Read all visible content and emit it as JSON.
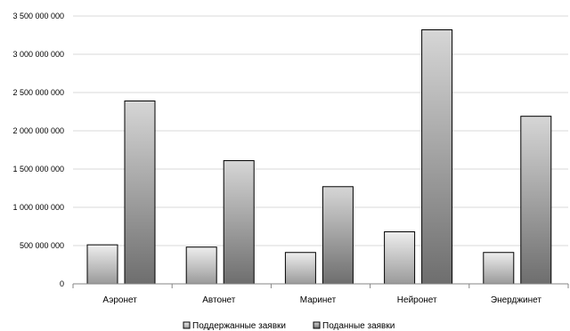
{
  "chart_data": {
    "type": "bar",
    "categories": [
      "Аэронет",
      "Автонет",
      "Маринет",
      "Нейронет",
      "Энерджинет"
    ],
    "series": [
      {
        "name": "Поддержанные заявки",
        "values": [
          510000000,
          480000000,
          410000000,
          680000000,
          410000000
        ],
        "gradient_top": "#eeeeee",
        "gradient_bottom": "#9a9a9a"
      },
      {
        "name": "Поданные заявки",
        "values": [
          2390000000,
          1610000000,
          1270000000,
          3320000000,
          2190000000
        ],
        "gradient_top": "#d6d6d6",
        "gradient_bottom": "#6e6e6e"
      }
    ],
    "ylim": [
      0,
      3500000000
    ],
    "yticks": [
      {
        "value": 0,
        "label": "0"
      },
      {
        "value": 500000000,
        "label": "500 000 000"
      },
      {
        "value": 1000000000,
        "label": "1 000 000 000"
      },
      {
        "value": 1500000000,
        "label": "1 500 000 000"
      },
      {
        "value": 2000000000,
        "label": "2 000 000 000"
      },
      {
        "value": 2500000000,
        "label": "2 500 000 000"
      },
      {
        "value": 3000000000,
        "label": "3 000 000 000"
      },
      {
        "value": 3500000000,
        "label": "3 500 000 000"
      }
    ],
    "grid": true,
    "legend_position": "bottom",
    "title": "",
    "xlabel": "",
    "ylabel": ""
  },
  "colors": {
    "grid": "#d9d9d9",
    "axis": "#868686",
    "bar_stroke": "#000000"
  }
}
